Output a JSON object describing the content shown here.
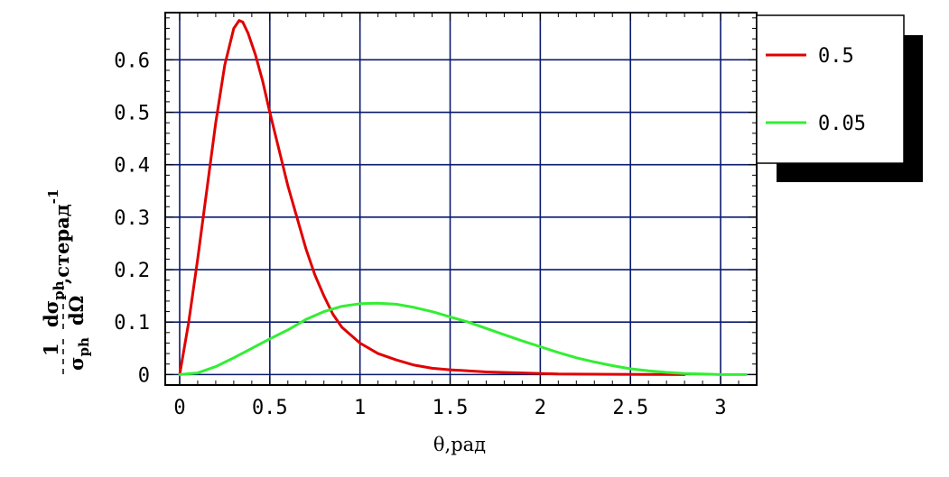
{
  "chart_data": {
    "type": "line",
    "xlabel": "θ,рад",
    "ylabel": "1/σ_ph · dσ_ph/dΩ, стерад^-1",
    "ylabel_parts": {
      "numerator_left": "1",
      "denominator_left": "σ",
      "denominator_left_sub": "ph",
      "numerator_right": "dσ",
      "numerator_right_sub": "ph",
      "denominator_right": "dΩ",
      "unit": ",стерад",
      "unit_sup": "-1"
    },
    "xlim": [
      -0.08,
      3.2
    ],
    "ylim": [
      -0.02,
      0.69
    ],
    "x_ticks": [
      0,
      0.5,
      1,
      1.5,
      2,
      2.5,
      3
    ],
    "x_tick_labels": [
      "0",
      "0.5",
      "1",
      "1.5",
      "2",
      "2.5",
      "3"
    ],
    "y_ticks": [
      0,
      0.1,
      0.2,
      0.3,
      0.4,
      0.5,
      0.6
    ],
    "y_tick_labels": [
      "0",
      "0.1",
      "0.2",
      "0.3",
      "0.4",
      "0.5",
      "0.6"
    ],
    "grid": true,
    "legend_position": "right",
    "series": [
      {
        "name": "0.5",
        "color": "#e00000",
        "x": [
          0,
          0.05,
          0.1,
          0.15,
          0.2,
          0.25,
          0.3,
          0.33,
          0.35,
          0.38,
          0.42,
          0.46,
          0.5,
          0.55,
          0.6,
          0.65,
          0.7,
          0.75,
          0.8,
          0.85,
          0.9,
          0.95,
          1.0,
          1.1,
          1.2,
          1.3,
          1.4,
          1.5,
          1.7,
          1.9,
          2.1,
          2.4,
          2.8
        ],
        "y": [
          0.0,
          0.1,
          0.22,
          0.35,
          0.48,
          0.59,
          0.66,
          0.675,
          0.672,
          0.65,
          0.61,
          0.56,
          0.5,
          0.43,
          0.36,
          0.3,
          0.24,
          0.19,
          0.15,
          0.115,
          0.09,
          0.075,
          0.06,
          0.04,
          0.028,
          0.018,
          0.012,
          0.009,
          0.005,
          0.003,
          0.001,
          0.0005,
          0.0
        ]
      },
      {
        "name": "0.05",
        "color": "#33ee33",
        "x": [
          0,
          0.1,
          0.2,
          0.3,
          0.4,
          0.5,
          0.6,
          0.7,
          0.8,
          0.9,
          1.0,
          1.1,
          1.2,
          1.3,
          1.4,
          1.5,
          1.6,
          1.7,
          1.8,
          1.9,
          2.0,
          2.1,
          2.2,
          2.3,
          2.4,
          2.5,
          2.6,
          2.7,
          2.8,
          2.9,
          3.0,
          3.14
        ],
        "y": [
          0.0,
          0.003,
          0.015,
          0.032,
          0.05,
          0.068,
          0.085,
          0.105,
          0.12,
          0.13,
          0.135,
          0.136,
          0.134,
          0.128,
          0.12,
          0.11,
          0.1,
          0.088,
          0.076,
          0.064,
          0.053,
          0.042,
          0.032,
          0.024,
          0.017,
          0.011,
          0.007,
          0.004,
          0.002,
          0.001,
          0.0,
          0.0
        ]
      }
    ]
  }
}
